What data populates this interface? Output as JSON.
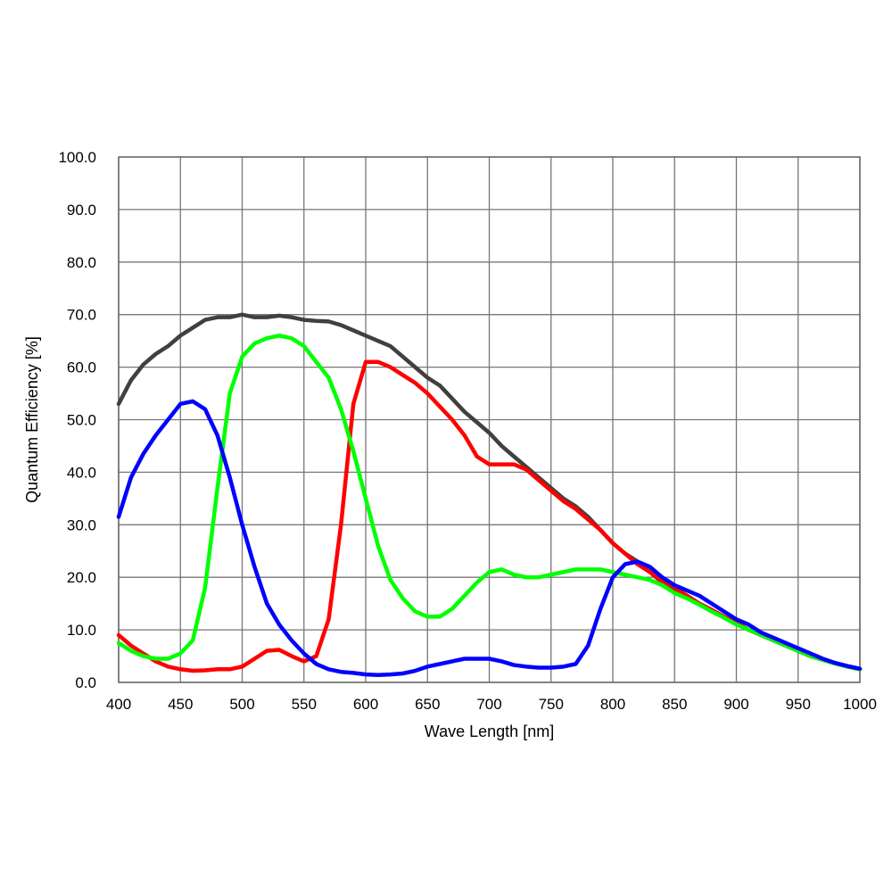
{
  "chart_data": {
    "type": "line",
    "title": "",
    "xlabel": "Wave Length [nm]",
    "ylabel": "Quantum Efficiency [%]",
    "xlim": [
      400,
      1000
    ],
    "ylim": [
      0,
      100
    ],
    "x_ticks": [
      "400",
      "450",
      "500",
      "550",
      "600",
      "650",
      "700",
      "750",
      "800",
      "850",
      "900",
      "950",
      "1000"
    ],
    "y_ticks": [
      "0.0",
      "10.0",
      "20.0",
      "30.0",
      "40.0",
      "50.0",
      "60.0",
      "70.0",
      "80.0",
      "90.0",
      "100.0"
    ],
    "grid": true,
    "legend": "none",
    "x": [
      400,
      410,
      420,
      430,
      440,
      450,
      460,
      470,
      480,
      490,
      500,
      510,
      520,
      530,
      540,
      550,
      560,
      570,
      580,
      590,
      600,
      610,
      620,
      630,
      640,
      650,
      660,
      670,
      680,
      690,
      700,
      710,
      720,
      730,
      740,
      750,
      760,
      770,
      780,
      790,
      800,
      810,
      820,
      830,
      840,
      850,
      860,
      870,
      880,
      890,
      900,
      910,
      920,
      930,
      940,
      950,
      960,
      970,
      980,
      990,
      1000
    ],
    "series": [
      {
        "color": "#404040",
        "values": [
          53,
          57.5,
          60.5,
          62.5,
          64,
          66,
          67.5,
          69,
          69.5,
          69.5,
          70,
          69.5,
          69.5,
          69.8,
          69.5,
          69,
          68.8,
          68.7,
          68,
          67,
          66,
          65,
          64,
          62,
          60,
          58,
          56.5,
          54,
          51.5,
          49.5,
          47.5,
          45,
          43,
          41,
          39,
          37,
          35,
          33.5,
          31.5,
          29,
          26.5,
          24.5,
          23,
          21,
          19,
          17.5,
          16.5,
          15,
          13.8,
          12.5,
          11.3,
          10,
          9,
          8,
          7,
          6,
          5,
          4.3,
          3.6,
          3.0,
          2.5
        ]
      },
      {
        "color": "#ff0000",
        "values": [
          9,
          7,
          5.5,
          4,
          3,
          2.5,
          2.2,
          2.3,
          2.5,
          2.5,
          3,
          4.5,
          6,
          6.2,
          5,
          4,
          5,
          12,
          30,
          53,
          61,
          61,
          60,
          58.5,
          57,
          55,
          52.5,
          50,
          47,
          43,
          41.5,
          41.5,
          41.5,
          40.5,
          38.5,
          36.5,
          34.5,
          33,
          31,
          29,
          26.5,
          24.5,
          22.5,
          21,
          19.2,
          18,
          16.5,
          15,
          13.8,
          12.5,
          11.3,
          10,
          9,
          8,
          7,
          6,
          5,
          4.3,
          3.6,
          3.0,
          2.5
        ]
      },
      {
        "color": "#00ff00",
        "values": [
          7.5,
          6,
          5,
          4.5,
          4.5,
          5.5,
          8,
          18,
          37,
          55,
          62,
          64.5,
          65.5,
          66,
          65.5,
          64,
          61,
          58,
          52,
          44,
          35,
          26,
          19.5,
          16,
          13.5,
          12.5,
          12.5,
          14,
          16.5,
          19,
          21,
          21.5,
          20.5,
          20,
          20,
          20.5,
          21,
          21.5,
          21.5,
          21.5,
          21,
          20.5,
          20,
          19.5,
          18.5,
          17,
          16,
          14.8,
          13.5,
          12.3,
          11,
          10,
          9,
          8,
          7,
          6,
          5,
          4.3,
          3.6,
          3.0,
          2.5
        ]
      },
      {
        "color": "#0000ff",
        "values": [
          31.5,
          39,
          43.5,
          47,
          50,
          53,
          53.5,
          52,
          47,
          39,
          30,
          22,
          15,
          11,
          8,
          5.5,
          3.5,
          2.5,
          2,
          1.8,
          1.5,
          1.4,
          1.5,
          1.7,
          2.2,
          3,
          3.5,
          4,
          4.5,
          4.5,
          4.5,
          4,
          3.3,
          3,
          2.8,
          2.8,
          3,
          3.5,
          7,
          14,
          20,
          22.5,
          23,
          22,
          20,
          18.5,
          17.5,
          16.5,
          15,
          13.5,
          12,
          11,
          9.5,
          8.5,
          7.5,
          6.5,
          5.5,
          4.5,
          3.7,
          3.1,
          2.6
        ]
      }
    ]
  }
}
